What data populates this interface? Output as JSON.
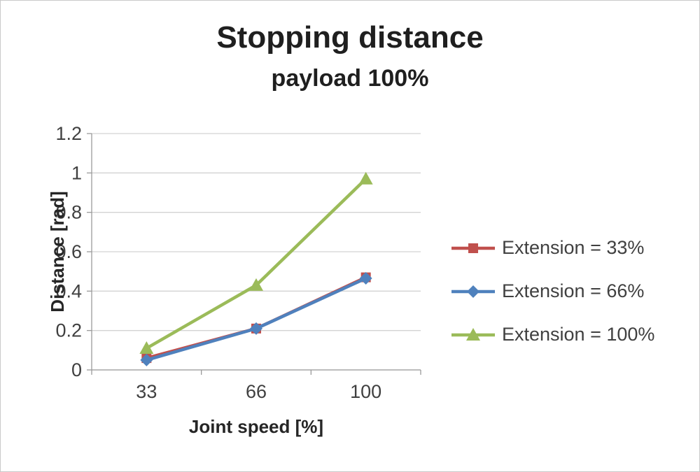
{
  "chart_data": {
    "type": "line",
    "title": "Stopping distance",
    "subtitle": "payload 100%",
    "xlabel": "Joint speed [%]",
    "ylabel": "Distance [rad]",
    "categories": [
      "33",
      "66",
      "100"
    ],
    "series": [
      {
        "name": "Extension = 33%",
        "color": "#C0504D",
        "marker": "square",
        "values": [
          0.06,
          0.21,
          0.47
        ]
      },
      {
        "name": "Extension = 66%",
        "color": "#4F81BD",
        "marker": "diamond",
        "values": [
          0.05,
          0.21,
          0.465
        ]
      },
      {
        "name": "Extension = 100%",
        "color": "#9BBB59",
        "marker": "triangle",
        "values": [
          0.11,
          0.43,
          0.97
        ]
      }
    ],
    "ylim": [
      0,
      1.2
    ],
    "yticks": [
      "0",
      "0.2",
      "0.4",
      "0.6",
      "0.8",
      "1",
      "1.2"
    ],
    "grid": true,
    "legend_position": "right",
    "colors": {
      "gridline": "#d3d3d3",
      "axis_line": "#9a9a9a",
      "tick_text": "#404040"
    }
  }
}
